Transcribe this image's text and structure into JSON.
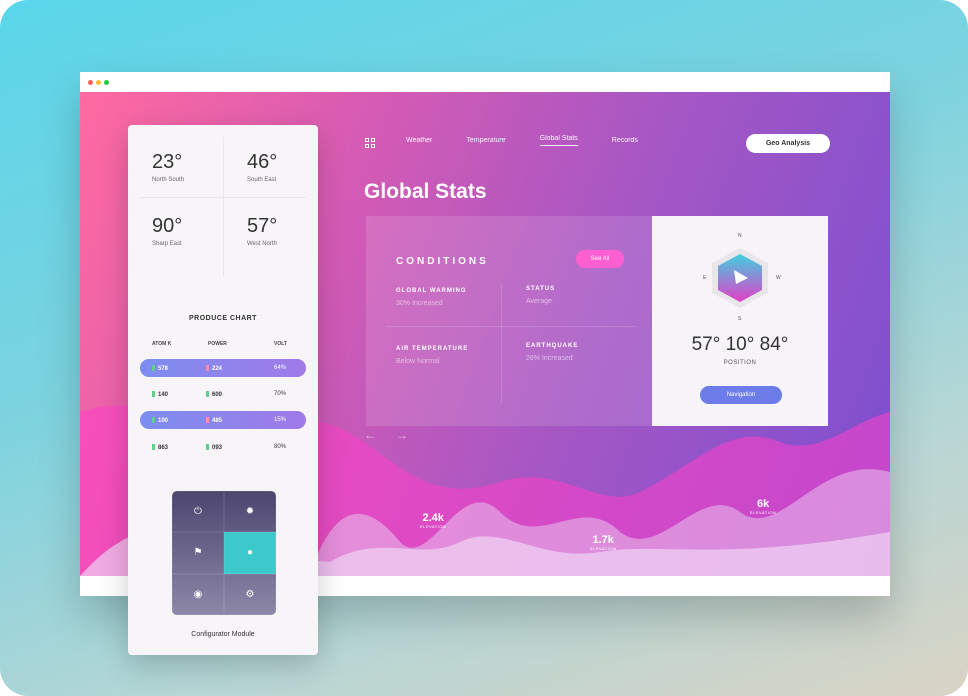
{
  "window": {
    "controls": [
      "close",
      "minimize",
      "maximize"
    ],
    "colors": {
      "close": "#ff5f57",
      "minimize": "#febc2e",
      "maximize": "#28c840"
    }
  },
  "nav": {
    "items": [
      "Weather",
      "Temperature",
      "Global Stats",
      "Records"
    ],
    "active": "Global Stats",
    "cta": "Geo Analysis",
    "menu_icon": "grid-icon"
  },
  "page_title": "Global Stats",
  "conditions": {
    "title": "CONDITIONS",
    "see_all": "See All",
    "items": [
      {
        "label": "GLOBAL WARMING",
        "value": "30% Increased"
      },
      {
        "label": "STATUS",
        "value": "Average"
      },
      {
        "label": "AIR TEMPERATURE",
        "value": "Below Normal"
      },
      {
        "label": "EARTHQUAKE",
        "value": "26% Increased"
      }
    ]
  },
  "position_card": {
    "compass": {
      "n": "N",
      "e": "E",
      "w": "W",
      "s": "S"
    },
    "coords": "57° 10° 84°",
    "label": "POSITION",
    "button": "Navigation"
  },
  "elevations": [
    {
      "value": "2.4k",
      "label": "ELEVATION"
    },
    {
      "value": "1.7k",
      "label": "ELEVATION"
    },
    {
      "value": "6k",
      "label": "ELEVATION"
    }
  ],
  "temps": [
    {
      "value": "23°",
      "dir": "North South"
    },
    {
      "value": "46°",
      "dir": "South East"
    },
    {
      "value": "90°",
      "dir": "Sharp East"
    },
    {
      "value": "57°",
      "dir": "West North"
    }
  ],
  "produce_chart": {
    "title": "PRODUCE CHART",
    "headers": [
      "ATOM K",
      "POWER",
      "VOLT"
    ],
    "rows": [
      {
        "atom": "578",
        "power": "224",
        "volt": "64%",
        "highlight": true
      },
      {
        "atom": "140",
        "power": "600",
        "volt": "70%",
        "highlight": false
      },
      {
        "atom": "100",
        "power": "485",
        "volt": "15%",
        "highlight": true
      },
      {
        "atom": "863",
        "power": "093",
        "volt": "80%",
        "highlight": false
      }
    ]
  },
  "configurator": {
    "label": "Configurator Module",
    "icons": [
      "power-icon",
      "sun-icon",
      "flag-icon",
      "circle-icon",
      "disc-icon",
      "gear-icon"
    ],
    "selected": "circle-icon"
  }
}
